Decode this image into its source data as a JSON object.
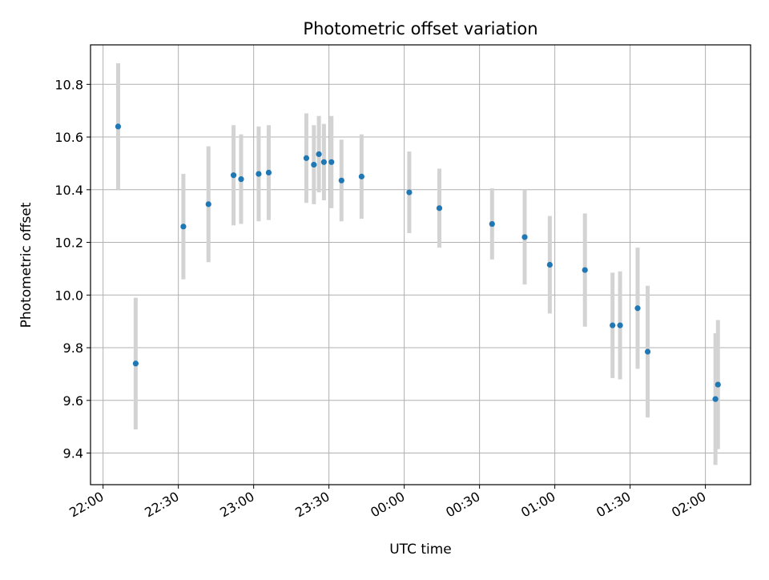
{
  "chart_data": {
    "type": "scatter",
    "title": "Photometric offset variation",
    "xlabel": "UTC time",
    "ylabel": "Photometric offset",
    "grid": true,
    "legend": "none",
    "error_bars": true,
    "colors": {
      "points": "#1f77b4",
      "error_bars": "#d3d3d3",
      "grid": "#b0b0b0"
    },
    "xlim": [
      "21:55",
      "02:18"
    ],
    "ylim": [
      9.28,
      10.95
    ],
    "x_ticks": [
      "22:00",
      "22:30",
      "23:00",
      "23:30",
      "00:00",
      "00:30",
      "01:00",
      "01:30",
      "02:00"
    ],
    "y_ticks": [
      "9.4",
      "9.6",
      "9.8",
      "10.0",
      "10.2",
      "10.4",
      "10.6",
      "10.8"
    ],
    "series": [
      {
        "points": [
          {
            "x": "22:06",
            "y": 10.64,
            "err": 0.24
          },
          {
            "x": "22:13",
            "y": 9.74,
            "err": 0.25
          },
          {
            "x": "22:32",
            "y": 10.26,
            "err": 0.2
          },
          {
            "x": "22:42",
            "y": 10.345,
            "err": 0.22
          },
          {
            "x": "22:52",
            "y": 10.455,
            "err": 0.19
          },
          {
            "x": "22:55",
            "y": 10.44,
            "err": 0.17
          },
          {
            "x": "23:02",
            "y": 10.46,
            "err": 0.18
          },
          {
            "x": "23:06",
            "y": 10.465,
            "err": 0.18
          },
          {
            "x": "23:21",
            "y": 10.52,
            "err": 0.17
          },
          {
            "x": "23:24",
            "y": 10.495,
            "err": 0.15
          },
          {
            "x": "23:26",
            "y": 10.535,
            "err": 0.145
          },
          {
            "x": "23:28",
            "y": 10.505,
            "err": 0.145
          },
          {
            "x": "23:31",
            "y": 10.505,
            "err": 0.175
          },
          {
            "x": "23:35",
            "y": 10.435,
            "err": 0.155
          },
          {
            "x": "23:43",
            "y": 10.45,
            "err": 0.16
          },
          {
            "x": "00:02",
            "y": 10.39,
            "err": 0.155
          },
          {
            "x": "00:14",
            "y": 10.33,
            "err": 0.15
          },
          {
            "x": "00:35",
            "y": 10.27,
            "err": 0.135
          },
          {
            "x": "00:48",
            "y": 10.22,
            "err": 0.18
          },
          {
            "x": "00:58",
            "y": 10.115,
            "err": 0.185
          },
          {
            "x": "01:12",
            "y": 10.095,
            "err": 0.215
          },
          {
            "x": "01:23",
            "y": 9.885,
            "err": 0.2
          },
          {
            "x": "01:26",
            "y": 9.885,
            "err": 0.205
          },
          {
            "x": "01:33",
            "y": 9.95,
            "err": 0.23
          },
          {
            "x": "01:37",
            "y": 9.785,
            "err": 0.25
          },
          {
            "x": "02:04",
            "y": 9.605,
            "err": 0.25
          },
          {
            "x": "02:05",
            "y": 9.66,
            "err": 0.245
          }
        ]
      }
    ]
  }
}
